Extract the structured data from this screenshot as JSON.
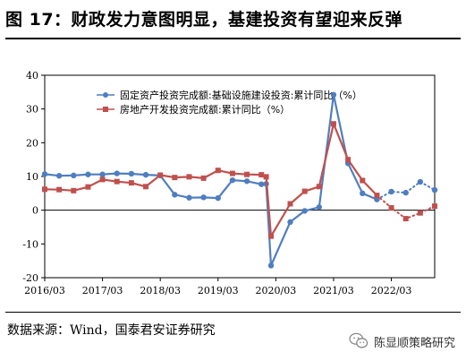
{
  "header": {
    "title": "图 17：财政发力意图明显，基建投资有望迎来反弹"
  },
  "footer": {
    "source": "数据来源：Wind，国泰君安证券研究",
    "watermark": "陈显顺策略研究",
    "watermark_icon": "wechat-icon"
  },
  "colors": {
    "infra": "#4f7ec0",
    "realestate": "#c0504d",
    "axis": "#000000",
    "plot_border": "#000000"
  },
  "chart_data": {
    "type": "line",
    "title": "图 17：财政发力意图明显，基建投资有望迎来反弹",
    "xlabel": "",
    "ylabel": "",
    "ylim": [
      -20,
      40
    ],
    "yticks": [
      -20,
      -10,
      0,
      10,
      20,
      30,
      40
    ],
    "xlim": [
      "2016-03",
      "2022-12"
    ],
    "xticks": [
      "2016/03",
      "2017/03",
      "2018/03",
      "2019/03",
      "2020/03",
      "2021/03",
      "2022/03"
    ],
    "grid": false,
    "legend": "top-left",
    "series": [
      {
        "name": "固定资产投资完成额:基础设施建设投资:累计同比（%）",
        "color": "#4f7ec0",
        "marker": "circle",
        "points": [
          [
            "2016-03",
            10.7
          ],
          [
            "2016-06",
            10.2
          ],
          [
            "2016-09",
            10.3
          ],
          [
            "2016-12",
            10.6
          ],
          [
            "2017-03",
            10.6
          ],
          [
            "2017-06",
            10.9
          ],
          [
            "2017-09",
            10.8
          ],
          [
            "2017-12",
            10.5
          ],
          [
            "2018-03",
            10.3
          ],
          [
            "2018-06",
            4.6
          ],
          [
            "2018-09",
            3.7
          ],
          [
            "2018-12",
            3.8
          ],
          [
            "2019-03",
            3.6
          ],
          [
            "2019-06",
            8.9
          ],
          [
            "2019-09",
            8.6
          ],
          [
            "2019-12",
            7.7
          ],
          [
            "2020-01",
            7.8
          ],
          [
            "2020-02",
            -16.4
          ],
          [
            "2020-06",
            -3.5
          ],
          [
            "2020-09",
            -0.2
          ],
          [
            "2020-12",
            0.9
          ],
          [
            "2021-03",
            34.2
          ],
          [
            "2021-06",
            13.9
          ],
          [
            "2021-09",
            5.0
          ],
          [
            "2021-12",
            3.2
          ]
        ],
        "forecast_points": [
          [
            "2021-12",
            3.2
          ],
          [
            "2022-03",
            5.5
          ],
          [
            "2022-06",
            5.2
          ],
          [
            "2022-09",
            8.4
          ],
          [
            "2022-12",
            6.0
          ]
        ]
      },
      {
        "name": "房地产开发投资完成额:累计同比（%）",
        "color": "#c0504d",
        "marker": "square",
        "points": [
          [
            "2016-03",
            6.2
          ],
          [
            "2016-06",
            6.1
          ],
          [
            "2016-09",
            5.8
          ],
          [
            "2016-12",
            6.9
          ],
          [
            "2017-03",
            9.1
          ],
          [
            "2017-06",
            8.5
          ],
          [
            "2017-09",
            8.1
          ],
          [
            "2017-12",
            7.0
          ],
          [
            "2018-03",
            10.4
          ],
          [
            "2018-06",
            9.7
          ],
          [
            "2018-09",
            9.9
          ],
          [
            "2018-12",
            9.5
          ],
          [
            "2019-03",
            11.8
          ],
          [
            "2019-06",
            10.9
          ],
          [
            "2019-09",
            10.6
          ],
          [
            "2019-12",
            10.5
          ],
          [
            "2020-01",
            9.9
          ],
          [
            "2020-02",
            -7.7
          ],
          [
            "2020-06",
            1.9
          ],
          [
            "2020-09",
            5.6
          ],
          [
            "2020-12",
            7.0
          ],
          [
            "2021-03",
            25.6
          ],
          [
            "2021-06",
            15.0
          ],
          [
            "2021-09",
            8.8
          ],
          [
            "2021-12",
            4.4
          ]
        ],
        "forecast_points": [
          [
            "2021-12",
            4.4
          ],
          [
            "2022-03",
            0.7
          ],
          [
            "2022-06",
            -2.5
          ],
          [
            "2022-09",
            -0.8
          ],
          [
            "2022-12",
            1.2
          ]
        ]
      }
    ]
  }
}
